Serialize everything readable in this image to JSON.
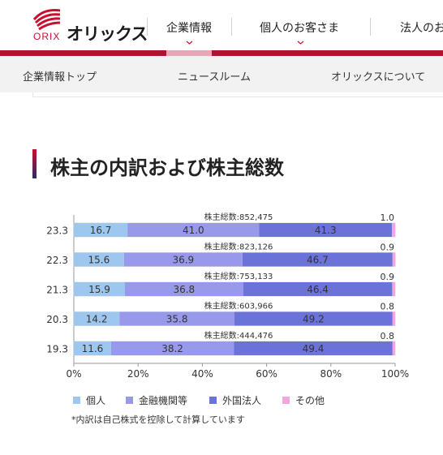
{
  "header": {
    "logo_en": "ORIX",
    "logo_jp": "オリックス",
    "nav": [
      "企業情報",
      "個人のお客さま",
      "法人のお"
    ]
  },
  "subnav": [
    "企業情報トップ",
    "ニュースルーム",
    "オリックスについて"
  ],
  "page_title": "株主の内訳および株主総数",
  "note": "*内訳は自己株式を控除して計算しています",
  "colors": {
    "brand": "#c8102e",
    "individual": "#9ec7f0",
    "financial": "#9999ec",
    "foreign": "#6b72d8",
    "other": "#f0a7dc"
  },
  "chart_data": {
    "type": "bar",
    "orientation": "horizontal",
    "stacked": true,
    "categories": [
      "23.3",
      "22.3",
      "21.3",
      "20.3",
      "19.3"
    ],
    "series": [
      {
        "name": "個人",
        "values": [
          16.7,
          15.6,
          15.9,
          14.2,
          11.6
        ]
      },
      {
        "name": "金融機関等",
        "values": [
          41.0,
          36.9,
          36.8,
          35.8,
          38.2
        ]
      },
      {
        "name": "外国法人",
        "values": [
          41.3,
          46.7,
          46.4,
          49.2,
          49.4
        ]
      },
      {
        "name": "その他",
        "values": [
          1.0,
          0.9,
          0.9,
          0.8,
          0.8
        ]
      }
    ],
    "value_labels": [
      [
        "16.7",
        "41.0",
        "41.3",
        "1.0"
      ],
      [
        "15.6",
        "36.9",
        "46.7",
        "0.9"
      ],
      [
        "15.9",
        "36.8",
        "46.4",
        "0.9"
      ],
      [
        "14.2",
        "35.8",
        "49.2",
        "0.8"
      ],
      [
        "11.6",
        "38.2",
        "49.4",
        "0.8"
      ]
    ],
    "totals": [
      "株主総数:852,475",
      "株主総数:823,126",
      "株主総数:753,133",
      "株主総数:603,966",
      "株主総数:444,476"
    ],
    "x_ticks": [
      "0%",
      "20%",
      "40%",
      "60%",
      "80%",
      "100%"
    ],
    "xlim": [
      0,
      100
    ],
    "grid": false,
    "legend_position": "bottom"
  }
}
